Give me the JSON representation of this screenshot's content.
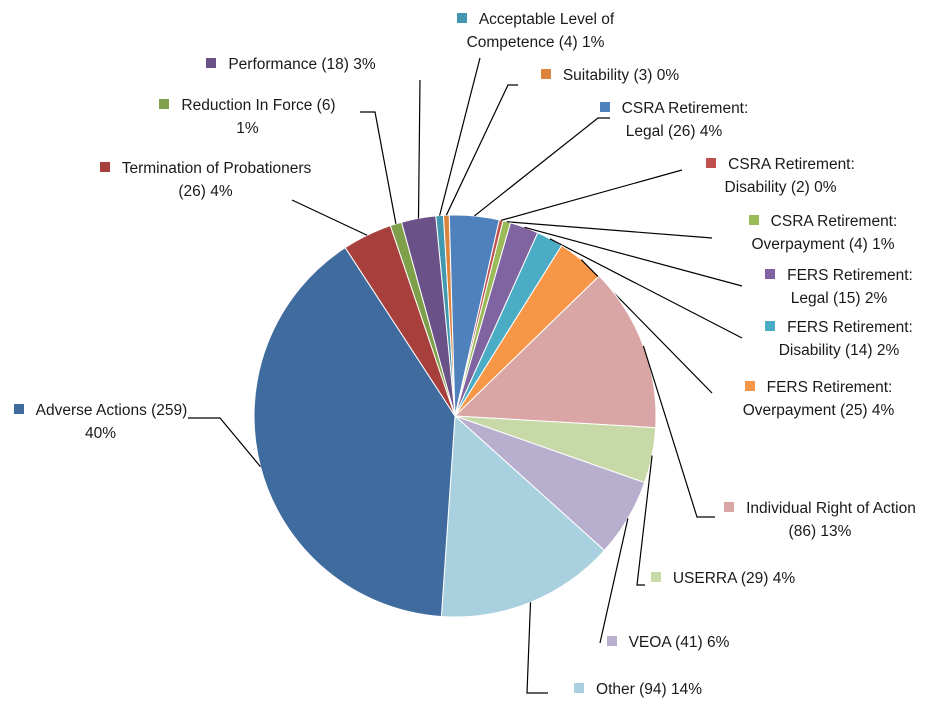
{
  "chart_data": {
    "type": "pie",
    "labels": [
      "Acceptable Level of Competence (4) 1%",
      "Suitability (3) 0%",
      "CSRA Retirement: Legal (26) 4%",
      "CSRA Retirement: Disability (2) 0%",
      "CSRA Retirement: Overpayment (4) 1%",
      "FERS Retirement: Legal (15) 2%",
      "FERS Retirement: Disability (14) 2%",
      "FERS Retirement: Overpayment (25) 4%",
      "Individual Right of Action (86) 13%",
      "USERRA (29) 4%",
      "VEOA (41) 6%",
      "Other (94) 14%",
      "Adverse Actions (259) 40%",
      "Termination of Probationers (26) 4%",
      "Reduction In Force (6) 1%",
      "Performance (18) 3%"
    ],
    "values": [
      4,
      3,
      26,
      2,
      4,
      15,
      14,
      25,
      86,
      29,
      41,
      94,
      259,
      26,
      6,
      18
    ],
    "colors": [
      "#4198af",
      "#db843d",
      "#4f81bd",
      "#c0504d",
      "#9bbb59",
      "#8064a2",
      "#4bacc6",
      "#f79646",
      "#d9a6a5",
      "#c7d9a6",
      "#b8afcf",
      "#a8d0df",
      "#3f6b9e",
      "#a7403d",
      "#7fa04a",
      "#6a5188"
    ]
  }
}
